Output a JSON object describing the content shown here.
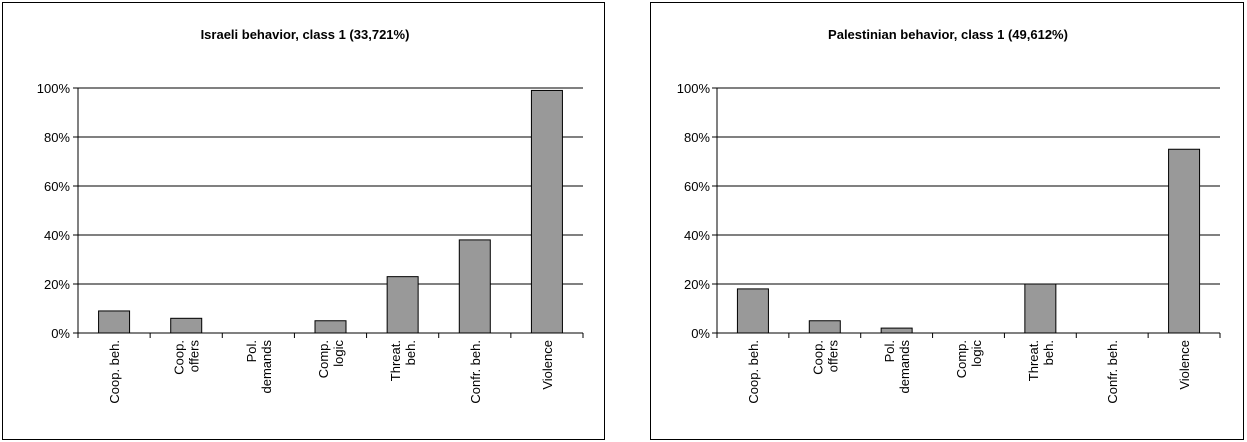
{
  "colors": {
    "bar_fill": "#999999",
    "bar_stroke": "#000000",
    "grid": "#000000",
    "background": "#ffffff"
  },
  "chart_data": [
    {
      "type": "bar",
      "title": "Israeli behavior, class 1 (33,721%)",
      "categories": [
        [
          "Coop. beh."
        ],
        [
          "Coop.",
          "offers"
        ],
        [
          "Pol.",
          "demands"
        ],
        [
          "Comp.",
          "logic"
        ],
        [
          "Threat.",
          "beh."
        ],
        [
          "Confr. beh."
        ],
        [
          "Violence"
        ]
      ],
      "values": [
        9,
        6,
        0,
        5,
        23,
        38,
        99
      ],
      "yticks": [
        "0%",
        "20%",
        "40%",
        "60%",
        "80%",
        "100%"
      ],
      "ylim": [
        0,
        100
      ],
      "grid": true,
      "legend": "none"
    },
    {
      "type": "bar",
      "title": "Palestinian behavior, class 1 (49,612%)",
      "categories": [
        [
          "Coop. beh."
        ],
        [
          "Coop.",
          "offers"
        ],
        [
          "Pol.",
          "demands"
        ],
        [
          "Comp.",
          "logic"
        ],
        [
          "Threat.",
          "beh."
        ],
        [
          "Confr. beh."
        ],
        [
          "Violence"
        ]
      ],
      "values": [
        18,
        5,
        2,
        0,
        20,
        0,
        75
      ],
      "yticks": [
        "0%",
        "20%",
        "40%",
        "60%",
        "80%",
        "100%"
      ],
      "ylim": [
        0,
        100
      ],
      "grid": true,
      "legend": "none"
    }
  ]
}
